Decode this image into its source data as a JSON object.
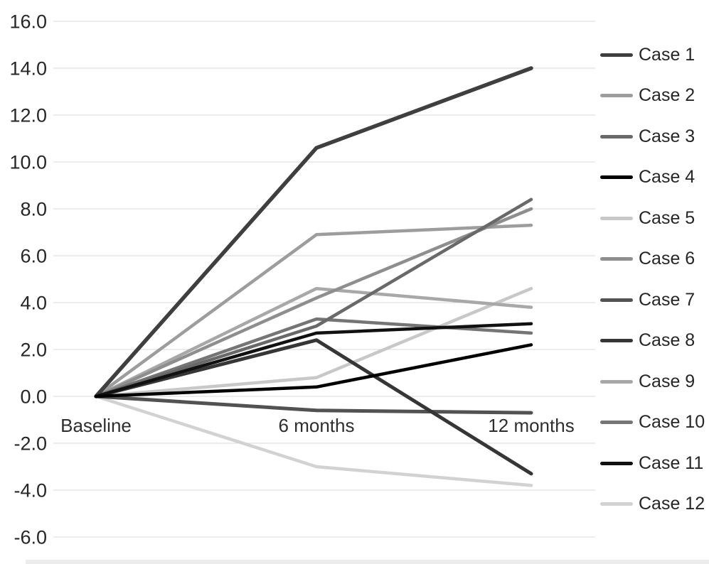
{
  "chart_data": {
    "type": "line",
    "categories": [
      "Baseline",
      "6 months",
      "12 months"
    ],
    "series": [
      {
        "name": "Case 1",
        "color": "#3f3f3f",
        "width": 5.5,
        "values": [
          0.0,
          10.6,
          14.0
        ]
      },
      {
        "name": "Case 2",
        "color": "#9d9d9d",
        "width": 4.5,
        "values": [
          0.0,
          6.9,
          7.3
        ]
      },
      {
        "name": "Case 3",
        "color": "#696969",
        "width": 4.5,
        "values": [
          0.0,
          3.0,
          8.4
        ]
      },
      {
        "name": "Case 4",
        "color": "#000000",
        "width": 4.5,
        "values": [
          0.0,
          0.4,
          2.2
        ]
      },
      {
        "name": "Case 5",
        "color": "#c8c8c8",
        "width": 4.5,
        "values": [
          0.0,
          0.8,
          4.6
        ]
      },
      {
        "name": "Case 6",
        "color": "#8e8e8e",
        "width": 4.5,
        "values": [
          0.0,
          4.2,
          8.0
        ]
      },
      {
        "name": "Case 7",
        "color": "#525252",
        "width": 5.0,
        "values": [
          0.0,
          -0.6,
          -0.7
        ]
      },
      {
        "name": "Case 8",
        "color": "#363636",
        "width": 5.0,
        "values": [
          0.0,
          2.4,
          -3.3
        ]
      },
      {
        "name": "Case 9",
        "color": "#a8a8a8",
        "width": 4.5,
        "values": [
          0.0,
          4.6,
          3.8
        ]
      },
      {
        "name": "Case 10",
        "color": "#757575",
        "width": 4.5,
        "values": [
          0.0,
          3.3,
          2.7
        ]
      },
      {
        "name": "Case 11",
        "color": "#111111",
        "width": 4.5,
        "values": [
          0.0,
          2.7,
          3.1
        ]
      },
      {
        "name": "Case 12",
        "color": "#d2d2d2",
        "width": 4.5,
        "values": [
          0.0,
          -3.0,
          -3.8
        ]
      }
    ],
    "ylim": [
      -6,
      16
    ],
    "yticks": [
      16,
      14,
      12,
      10,
      8,
      6,
      4,
      2,
      0,
      -2,
      -4,
      -6
    ],
    "ytick_labels": [
      "16.0",
      "14.0",
      "12.0",
      "10.0",
      "8.0",
      "6.0",
      "4.0",
      "2.0",
      "0.0",
      "-2.0",
      "-4.0",
      "-6.0"
    ],
    "grid": true,
    "grid_color": "#d9d9d9",
    "text_color": "#262626",
    "legend_position": "right"
  }
}
